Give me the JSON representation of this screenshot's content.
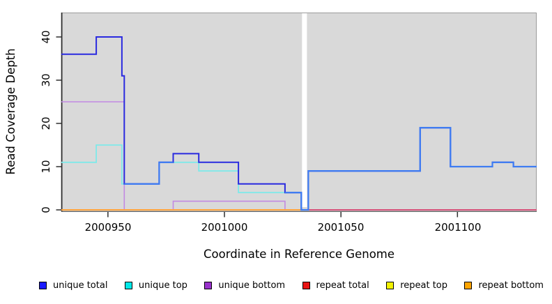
{
  "chart_data": {
    "type": "line",
    "subtype": "step-coverage",
    "title": "",
    "xlabel": "Coordinate in Reference Genome",
    "ylabel": "Read Coverage Depth",
    "xlim": [
      2000930,
      2001134
    ],
    "ylim": [
      0,
      45
    ],
    "x_ticks": [
      2000950,
      2001000,
      2001050,
      2001100
    ],
    "y_ticks": [
      0,
      10,
      20,
      30,
      40
    ],
    "grid": false,
    "panel_background": "#D9D9D9",
    "outer_background": "#FFFFFF",
    "masked_gap": {
      "x_start": 2001033.3,
      "x_end": 2001035.4,
      "color": "#FFFFFF"
    },
    "legend_position": "bottom-horizontal",
    "legend": [
      {
        "label": "unique total",
        "color": "#1A1AFF"
      },
      {
        "label": "unique top",
        "color": "#00E8E8"
      },
      {
        "label": "unique bottom",
        "color": "#9932CC"
      },
      {
        "label": "repeat total",
        "color": "#E81414"
      },
      {
        "label": "repeat top",
        "color": "#F2F200"
      },
      {
        "label": "repeat bottom",
        "color": "#FFA500"
      }
    ],
    "series": [
      {
        "name": "unique total",
        "line_color": "#2A2ADF",
        "width": 2,
        "points": [
          [
            2000930,
            36
          ],
          [
            2000945,
            40
          ],
          [
            2000956,
            31
          ],
          [
            2000957,
            6
          ],
          [
            2000972,
            11
          ],
          [
            2000978,
            13
          ],
          [
            2000989,
            11
          ],
          [
            2001006,
            6
          ],
          [
            2001026,
            4
          ],
          [
            2001033,
            0
          ],
          [
            2001036,
            9
          ],
          [
            2001084,
            19
          ],
          [
            2001097,
            10
          ],
          [
            2001115,
            11
          ],
          [
            2001124,
            10
          ]
        ]
      },
      {
        "name": "unique top",
        "line_color": "#7FE9E9",
        "width": 1.8,
        "points": [
          [
            2000930,
            11
          ],
          [
            2000945,
            15
          ],
          [
            2000956,
            6
          ],
          [
            2000972,
            11
          ],
          [
            2000989,
            9
          ],
          [
            2001006,
            4
          ],
          [
            2001033,
            0
          ],
          [
            2001036,
            9
          ],
          [
            2001084,
            19
          ],
          [
            2001097,
            10
          ],
          [
            2001115,
            11
          ],
          [
            2001124,
            10
          ]
        ]
      },
      {
        "name": "unique bottom",
        "line_color": "#C289E2",
        "width": 1.6,
        "points": [
          [
            2000930,
            25
          ],
          [
            2000957,
            0
          ],
          [
            2000978,
            2
          ],
          [
            2001026,
            0
          ]
        ]
      },
      {
        "name": "repeat total",
        "line_color": "#E81414",
        "width": 2,
        "points": [
          [
            2000930,
            0
          ]
        ]
      },
      {
        "name": "repeat top",
        "line_color": "#F2F200",
        "width": 2,
        "points": [
          [
            2000930,
            0
          ]
        ]
      },
      {
        "name": "repeat bottom",
        "line_color": "#FFA43C",
        "width": 2,
        "points": [
          [
            2000930,
            0
          ]
        ]
      }
    ],
    "overlap_total_top_color": "#3E7CF2",
    "zero_line_right": {
      "from": 2001035,
      "value": 0,
      "color": "#D6527A"
    }
  }
}
